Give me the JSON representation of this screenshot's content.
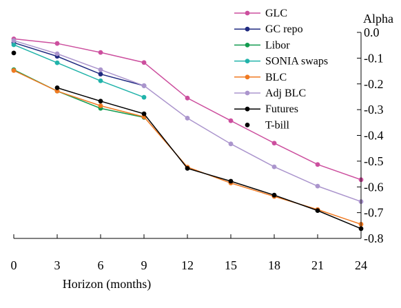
{
  "chart_data": {
    "type": "line",
    "title": "",
    "xlabel": "Horizon (months)",
    "ylabel": "Alpha",
    "x": [
      0,
      3,
      6,
      9,
      12,
      15,
      18,
      21,
      24
    ],
    "x_ticks": [
      "0",
      "3",
      "6",
      "9",
      "12",
      "15",
      "18",
      "21",
      "24"
    ],
    "xlim": [
      0,
      24
    ],
    "ylim": [
      -0.8,
      0.0
    ],
    "y_ticks": [
      "0.0",
      "-0.1",
      "-0.2",
      "-0.3",
      "-0.4",
      "-0.5",
      "-0.6",
      "-0.7",
      "-0.8"
    ],
    "y_axis_side": "right",
    "grid": false,
    "legend_position": "top-right",
    "series": [
      {
        "name": "GLC",
        "color": "#cc4f9e",
        "marker": "circle",
        "line": true,
        "values": [
          -0.025,
          -0.043,
          -0.078,
          -0.117,
          -0.255,
          -0.343,
          -0.43,
          -0.513,
          -0.572
        ]
      },
      {
        "name": "GC repo",
        "color": "#1f2a80",
        "marker": "circle",
        "line": true,
        "values": [
          -0.04,
          -0.093,
          -0.162,
          -0.207,
          null,
          null,
          null,
          null,
          null
        ]
      },
      {
        "name": "Libor",
        "color": "#129b4f",
        "marker": "circle",
        "line": true,
        "values": [
          -0.145,
          -0.228,
          -0.295,
          -0.33,
          null,
          null,
          null,
          null,
          null
        ]
      },
      {
        "name": "SONIA swaps",
        "color": "#21b3aa",
        "marker": "circle",
        "line": true,
        "values": [
          -0.048,
          -0.118,
          -0.188,
          -0.252,
          null,
          null,
          null,
          null,
          null
        ]
      },
      {
        "name": "BLC",
        "color": "#f07a22",
        "marker": "circle",
        "line": true,
        "values": [
          -0.148,
          -0.228,
          -0.285,
          -0.328,
          -0.523,
          -0.585,
          -0.637,
          -0.688,
          -0.745
        ]
      },
      {
        "name": "Adj BLC",
        "color": "#ab95cd",
        "marker": "circle",
        "line": true,
        "values": [
          -0.032,
          -0.083,
          -0.145,
          -0.207,
          -0.333,
          -0.433,
          -0.522,
          -0.597,
          -0.657
        ]
      },
      {
        "name": "Futures",
        "color": "#000000",
        "marker": "circle",
        "line": true,
        "values": [
          null,
          -0.215,
          -0.267,
          -0.316,
          -0.528,
          -0.578,
          -0.632,
          -0.692,
          -0.762
        ]
      },
      {
        "name": "T-bill",
        "color": "#000000",
        "marker": "circle",
        "line": false,
        "values": [
          -0.08,
          null,
          null,
          null,
          null,
          null,
          null,
          null,
          null
        ]
      }
    ]
  }
}
